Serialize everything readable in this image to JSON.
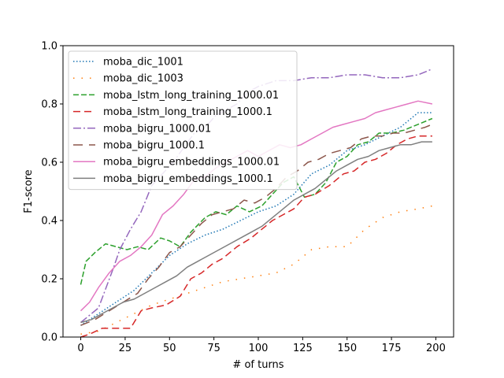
{
  "chart_data": {
    "type": "line",
    "title": "",
    "xlabel": "# of turns",
    "ylabel": "F1-score",
    "xlim": [
      -10,
      210
    ],
    "ylim": [
      0,
      1.0
    ],
    "xticks": [
      0,
      25,
      50,
      75,
      100,
      125,
      150,
      175,
      200
    ],
    "yticks": [
      0.0,
      0.2,
      0.4,
      0.6,
      0.8,
      1.0
    ],
    "grid": false,
    "legend_position": "top-left",
    "series": [
      {
        "name": "moba_dic_1001",
        "color": "#1f77b4",
        "dash": "dotted",
        "points": [
          [
            0,
            0.04
          ],
          [
            10,
            0.08
          ],
          [
            20,
            0.12
          ],
          [
            30,
            0.16
          ],
          [
            40,
            0.22
          ],
          [
            50,
            0.28
          ],
          [
            60,
            0.32
          ],
          [
            70,
            0.35
          ],
          [
            80,
            0.37
          ],
          [
            90,
            0.4
          ],
          [
            100,
            0.43
          ],
          [
            110,
            0.45
          ],
          [
            120,
            0.49
          ],
          [
            130,
            0.56
          ],
          [
            140,
            0.59
          ],
          [
            150,
            0.64
          ],
          [
            160,
            0.66
          ],
          [
            170,
            0.69
          ],
          [
            180,
            0.72
          ],
          [
            190,
            0.77
          ],
          [
            198,
            0.77
          ]
        ]
      },
      {
        "name": "moba_dic_1003",
        "color": "#ff7f0e",
        "dash": "sparse-dotted",
        "points": [
          [
            0,
            0.01
          ],
          [
            10,
            0.02
          ],
          [
            20,
            0.05
          ],
          [
            30,
            0.08
          ],
          [
            40,
            0.11
          ],
          [
            50,
            0.13
          ],
          [
            60,
            0.15
          ],
          [
            70,
            0.17
          ],
          [
            80,
            0.19
          ],
          [
            90,
            0.2
          ],
          [
            100,
            0.21
          ],
          [
            110,
            0.22
          ],
          [
            120,
            0.25
          ],
          [
            130,
            0.3
          ],
          [
            140,
            0.31
          ],
          [
            150,
            0.31
          ],
          [
            160,
            0.37
          ],
          [
            170,
            0.41
          ],
          [
            180,
            0.43
          ],
          [
            190,
            0.44
          ],
          [
            198,
            0.45
          ]
        ]
      },
      {
        "name": "moba_lstm_long_training_1000.01",
        "color": "#2ca02c",
        "dash": "dashed",
        "points": [
          [
            0,
            0.18
          ],
          [
            3,
            0.26
          ],
          [
            8,
            0.29
          ],
          [
            14,
            0.32
          ],
          [
            20,
            0.31
          ],
          [
            26,
            0.3
          ],
          [
            32,
            0.31
          ],
          [
            38,
            0.3
          ],
          [
            45,
            0.34
          ],
          [
            50,
            0.33
          ],
          [
            56,
            0.31
          ],
          [
            62,
            0.36
          ],
          [
            70,
            0.41
          ],
          [
            76,
            0.43
          ],
          [
            82,
            0.42
          ],
          [
            88,
            0.45
          ],
          [
            95,
            0.43
          ],
          [
            102,
            0.45
          ],
          [
            108,
            0.49
          ],
          [
            114,
            0.53
          ],
          [
            120,
            0.55
          ],
          [
            126,
            0.48
          ],
          [
            132,
            0.49
          ],
          [
            138,
            0.53
          ],
          [
            144,
            0.6
          ],
          [
            150,
            0.62
          ],
          [
            156,
            0.66
          ],
          [
            162,
            0.67
          ],
          [
            168,
            0.7
          ],
          [
            175,
            0.7
          ],
          [
            182,
            0.71
          ],
          [
            190,
            0.73
          ],
          [
            198,
            0.75
          ]
        ]
      },
      {
        "name": "moba_lstm_long_training_1000.1",
        "color": "#d62728",
        "dash": "long-dashed",
        "points": [
          [
            0,
            0.0
          ],
          [
            5,
            0.01
          ],
          [
            12,
            0.03
          ],
          [
            20,
            0.03
          ],
          [
            28,
            0.03
          ],
          [
            34,
            0.09
          ],
          [
            40,
            0.1
          ],
          [
            48,
            0.11
          ],
          [
            56,
            0.14
          ],
          [
            62,
            0.2
          ],
          [
            68,
            0.22
          ],
          [
            74,
            0.25
          ],
          [
            80,
            0.27
          ],
          [
            88,
            0.31
          ],
          [
            96,
            0.34
          ],
          [
            102,
            0.37
          ],
          [
            108,
            0.4
          ],
          [
            114,
            0.42
          ],
          [
            120,
            0.44
          ],
          [
            126,
            0.48
          ],
          [
            132,
            0.49
          ],
          [
            140,
            0.52
          ],
          [
            148,
            0.56
          ],
          [
            154,
            0.57
          ],
          [
            160,
            0.6
          ],
          [
            166,
            0.61
          ],
          [
            172,
            0.63
          ],
          [
            178,
            0.66
          ],
          [
            184,
            0.68
          ],
          [
            190,
            0.69
          ],
          [
            198,
            0.69
          ]
        ]
      },
      {
        "name": "moba_bigru_1000.01",
        "color": "#9467bd",
        "dash": "dash-dot",
        "points": [
          [
            0,
            0.05
          ],
          [
            10,
            0.1
          ],
          [
            18,
            0.23
          ],
          [
            22,
            0.3
          ],
          [
            28,
            0.37
          ],
          [
            34,
            0.43
          ],
          [
            40,
            0.52
          ],
          [
            46,
            0.56
          ],
          [
            52,
            0.6
          ],
          [
            58,
            0.65
          ],
          [
            64,
            0.7
          ],
          [
            70,
            0.72
          ],
          [
            76,
            0.76
          ],
          [
            82,
            0.78
          ],
          [
            88,
            0.8
          ],
          [
            94,
            0.84
          ],
          [
            100,
            0.86
          ],
          [
            110,
            0.88
          ],
          [
            120,
            0.88
          ],
          [
            130,
            0.89
          ],
          [
            140,
            0.89
          ],
          [
            150,
            0.9
          ],
          [
            160,
            0.9
          ],
          [
            170,
            0.89
          ],
          [
            180,
            0.89
          ],
          [
            190,
            0.9
          ],
          [
            198,
            0.92
          ]
        ]
      },
      {
        "name": "moba_bigru_1000.1",
        "color": "#8c564b",
        "dash": "wide-dashed",
        "points": [
          [
            0,
            0.04
          ],
          [
            8,
            0.06
          ],
          [
            16,
            0.09
          ],
          [
            24,
            0.12
          ],
          [
            32,
            0.15
          ],
          [
            38,
            0.2
          ],
          [
            44,
            0.24
          ],
          [
            50,
            0.29
          ],
          [
            56,
            0.31
          ],
          [
            62,
            0.35
          ],
          [
            68,
            0.39
          ],
          [
            74,
            0.42
          ],
          [
            80,
            0.43
          ],
          [
            86,
            0.44
          ],
          [
            92,
            0.47
          ],
          [
            98,
            0.46
          ],
          [
            104,
            0.48
          ],
          [
            110,
            0.51
          ],
          [
            116,
            0.55
          ],
          [
            122,
            0.57
          ],
          [
            128,
            0.6
          ],
          [
            134,
            0.61
          ],
          [
            140,
            0.63
          ],
          [
            146,
            0.64
          ],
          [
            152,
            0.65
          ],
          [
            158,
            0.68
          ],
          [
            164,
            0.69
          ],
          [
            170,
            0.69
          ],
          [
            176,
            0.7
          ],
          [
            182,
            0.7
          ],
          [
            188,
            0.71
          ],
          [
            194,
            0.72
          ],
          [
            198,
            0.73
          ]
        ]
      },
      {
        "name": "moba_bigru_embeddings_1000.01",
        "color": "#e377c2",
        "dash": "solid",
        "points": [
          [
            0,
            0.09
          ],
          [
            5,
            0.12
          ],
          [
            10,
            0.17
          ],
          [
            16,
            0.22
          ],
          [
            22,
            0.26
          ],
          [
            28,
            0.28
          ],
          [
            34,
            0.31
          ],
          [
            40,
            0.35
          ],
          [
            46,
            0.42
          ],
          [
            52,
            0.45
          ],
          [
            58,
            0.49
          ],
          [
            64,
            0.54
          ],
          [
            70,
            0.55
          ],
          [
            76,
            0.58
          ],
          [
            82,
            0.6
          ],
          [
            88,
            0.62
          ],
          [
            94,
            0.64
          ],
          [
            100,
            0.62
          ],
          [
            106,
            0.64
          ],
          [
            112,
            0.66
          ],
          [
            118,
            0.65
          ],
          [
            124,
            0.66
          ],
          [
            130,
            0.68
          ],
          [
            136,
            0.7
          ],
          [
            142,
            0.72
          ],
          [
            148,
            0.73
          ],
          [
            154,
            0.74
          ],
          [
            160,
            0.75
          ],
          [
            166,
            0.77
          ],
          [
            172,
            0.78
          ],
          [
            178,
            0.79
          ],
          [
            184,
            0.8
          ],
          [
            190,
            0.81
          ],
          [
            198,
            0.8
          ]
        ]
      },
      {
        "name": "moba_bigru_embeddings_1000.1",
        "color": "#7f7f7f",
        "dash": "solid",
        "points": [
          [
            0,
            0.05
          ],
          [
            6,
            0.06
          ],
          [
            12,
            0.08
          ],
          [
            18,
            0.1
          ],
          [
            24,
            0.12
          ],
          [
            30,
            0.13
          ],
          [
            36,
            0.15
          ],
          [
            42,
            0.17
          ],
          [
            48,
            0.19
          ],
          [
            54,
            0.21
          ],
          [
            60,
            0.24
          ],
          [
            66,
            0.26
          ],
          [
            72,
            0.28
          ],
          [
            78,
            0.3
          ],
          [
            84,
            0.32
          ],
          [
            90,
            0.34
          ],
          [
            96,
            0.36
          ],
          [
            102,
            0.38
          ],
          [
            108,
            0.41
          ],
          [
            114,
            0.44
          ],
          [
            120,
            0.47
          ],
          [
            126,
            0.49
          ],
          [
            132,
            0.51
          ],
          [
            138,
            0.54
          ],
          [
            144,
            0.57
          ],
          [
            150,
            0.59
          ],
          [
            156,
            0.61
          ],
          [
            162,
            0.62
          ],
          [
            168,
            0.64
          ],
          [
            174,
            0.65
          ],
          [
            180,
            0.66
          ],
          [
            186,
            0.66
          ],
          [
            192,
            0.67
          ],
          [
            198,
            0.67
          ]
        ]
      }
    ]
  }
}
